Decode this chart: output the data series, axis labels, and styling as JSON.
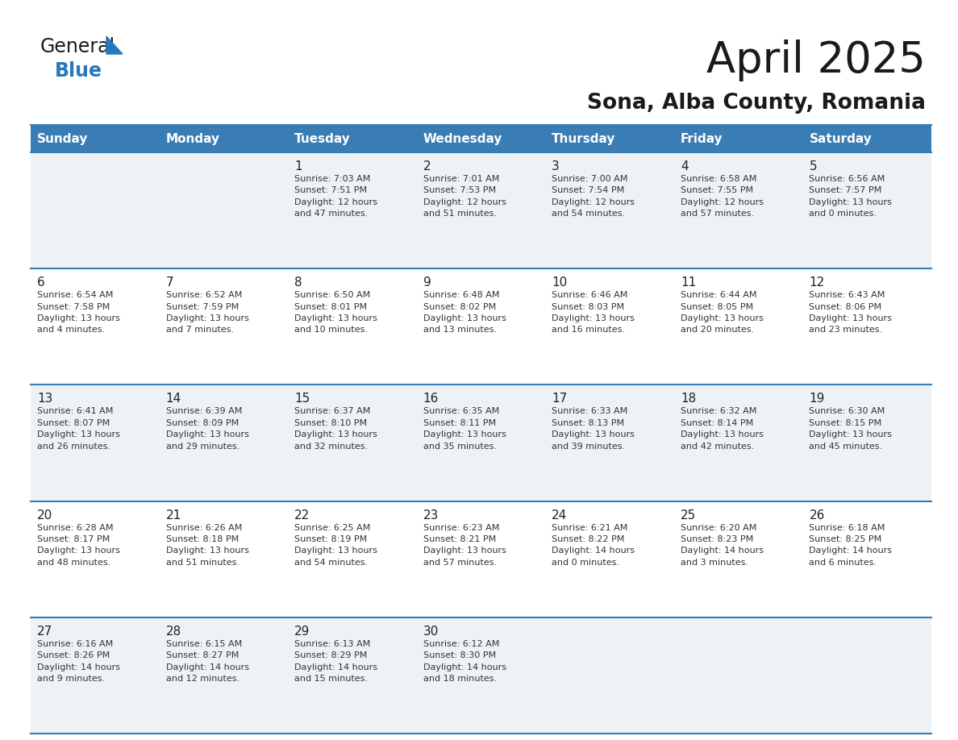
{
  "title": "April 2025",
  "subtitle": "Sona, Alba County, Romania",
  "days_of_week": [
    "Sunday",
    "Monday",
    "Tuesday",
    "Wednesday",
    "Thursday",
    "Friday",
    "Saturday"
  ],
  "header_bg": "#3a7db5",
  "header_text": "#ffffff",
  "row_odd_bg": "#eef2f7",
  "row_even_bg": "#ffffff",
  "border_color": "#3a7db5",
  "day_num_color": "#222222",
  "text_color": "#333333",
  "logo_color": "#2878be",
  "logo_black": "#1a1a1a",
  "title_color": "#1a1a1a",
  "subtitle_color": "#1a1a1a",
  "calendar": [
    [
      {
        "day": "",
        "info": ""
      },
      {
        "day": "",
        "info": ""
      },
      {
        "day": "1",
        "info": "Sunrise: 7:03 AM\nSunset: 7:51 PM\nDaylight: 12 hours\nand 47 minutes."
      },
      {
        "day": "2",
        "info": "Sunrise: 7:01 AM\nSunset: 7:53 PM\nDaylight: 12 hours\nand 51 minutes."
      },
      {
        "day": "3",
        "info": "Sunrise: 7:00 AM\nSunset: 7:54 PM\nDaylight: 12 hours\nand 54 minutes."
      },
      {
        "day": "4",
        "info": "Sunrise: 6:58 AM\nSunset: 7:55 PM\nDaylight: 12 hours\nand 57 minutes."
      },
      {
        "day": "5",
        "info": "Sunrise: 6:56 AM\nSunset: 7:57 PM\nDaylight: 13 hours\nand 0 minutes."
      }
    ],
    [
      {
        "day": "6",
        "info": "Sunrise: 6:54 AM\nSunset: 7:58 PM\nDaylight: 13 hours\nand 4 minutes."
      },
      {
        "day": "7",
        "info": "Sunrise: 6:52 AM\nSunset: 7:59 PM\nDaylight: 13 hours\nand 7 minutes."
      },
      {
        "day": "8",
        "info": "Sunrise: 6:50 AM\nSunset: 8:01 PM\nDaylight: 13 hours\nand 10 minutes."
      },
      {
        "day": "9",
        "info": "Sunrise: 6:48 AM\nSunset: 8:02 PM\nDaylight: 13 hours\nand 13 minutes."
      },
      {
        "day": "10",
        "info": "Sunrise: 6:46 AM\nSunset: 8:03 PM\nDaylight: 13 hours\nand 16 minutes."
      },
      {
        "day": "11",
        "info": "Sunrise: 6:44 AM\nSunset: 8:05 PM\nDaylight: 13 hours\nand 20 minutes."
      },
      {
        "day": "12",
        "info": "Sunrise: 6:43 AM\nSunset: 8:06 PM\nDaylight: 13 hours\nand 23 minutes."
      }
    ],
    [
      {
        "day": "13",
        "info": "Sunrise: 6:41 AM\nSunset: 8:07 PM\nDaylight: 13 hours\nand 26 minutes."
      },
      {
        "day": "14",
        "info": "Sunrise: 6:39 AM\nSunset: 8:09 PM\nDaylight: 13 hours\nand 29 minutes."
      },
      {
        "day": "15",
        "info": "Sunrise: 6:37 AM\nSunset: 8:10 PM\nDaylight: 13 hours\nand 32 minutes."
      },
      {
        "day": "16",
        "info": "Sunrise: 6:35 AM\nSunset: 8:11 PM\nDaylight: 13 hours\nand 35 minutes."
      },
      {
        "day": "17",
        "info": "Sunrise: 6:33 AM\nSunset: 8:13 PM\nDaylight: 13 hours\nand 39 minutes."
      },
      {
        "day": "18",
        "info": "Sunrise: 6:32 AM\nSunset: 8:14 PM\nDaylight: 13 hours\nand 42 minutes."
      },
      {
        "day": "19",
        "info": "Sunrise: 6:30 AM\nSunset: 8:15 PM\nDaylight: 13 hours\nand 45 minutes."
      }
    ],
    [
      {
        "day": "20",
        "info": "Sunrise: 6:28 AM\nSunset: 8:17 PM\nDaylight: 13 hours\nand 48 minutes."
      },
      {
        "day": "21",
        "info": "Sunrise: 6:26 AM\nSunset: 8:18 PM\nDaylight: 13 hours\nand 51 minutes."
      },
      {
        "day": "22",
        "info": "Sunrise: 6:25 AM\nSunset: 8:19 PM\nDaylight: 13 hours\nand 54 minutes."
      },
      {
        "day": "23",
        "info": "Sunrise: 6:23 AM\nSunset: 8:21 PM\nDaylight: 13 hours\nand 57 minutes."
      },
      {
        "day": "24",
        "info": "Sunrise: 6:21 AM\nSunset: 8:22 PM\nDaylight: 14 hours\nand 0 minutes."
      },
      {
        "day": "25",
        "info": "Sunrise: 6:20 AM\nSunset: 8:23 PM\nDaylight: 14 hours\nand 3 minutes."
      },
      {
        "day": "26",
        "info": "Sunrise: 6:18 AM\nSunset: 8:25 PM\nDaylight: 14 hours\nand 6 minutes."
      }
    ],
    [
      {
        "day": "27",
        "info": "Sunrise: 6:16 AM\nSunset: 8:26 PM\nDaylight: 14 hours\nand 9 minutes."
      },
      {
        "day": "28",
        "info": "Sunrise: 6:15 AM\nSunset: 8:27 PM\nDaylight: 14 hours\nand 12 minutes."
      },
      {
        "day": "29",
        "info": "Sunrise: 6:13 AM\nSunset: 8:29 PM\nDaylight: 14 hours\nand 15 minutes."
      },
      {
        "day": "30",
        "info": "Sunrise: 6:12 AM\nSunset: 8:30 PM\nDaylight: 14 hours\nand 18 minutes."
      },
      {
        "day": "",
        "info": ""
      },
      {
        "day": "",
        "info": ""
      },
      {
        "day": "",
        "info": ""
      }
    ]
  ]
}
